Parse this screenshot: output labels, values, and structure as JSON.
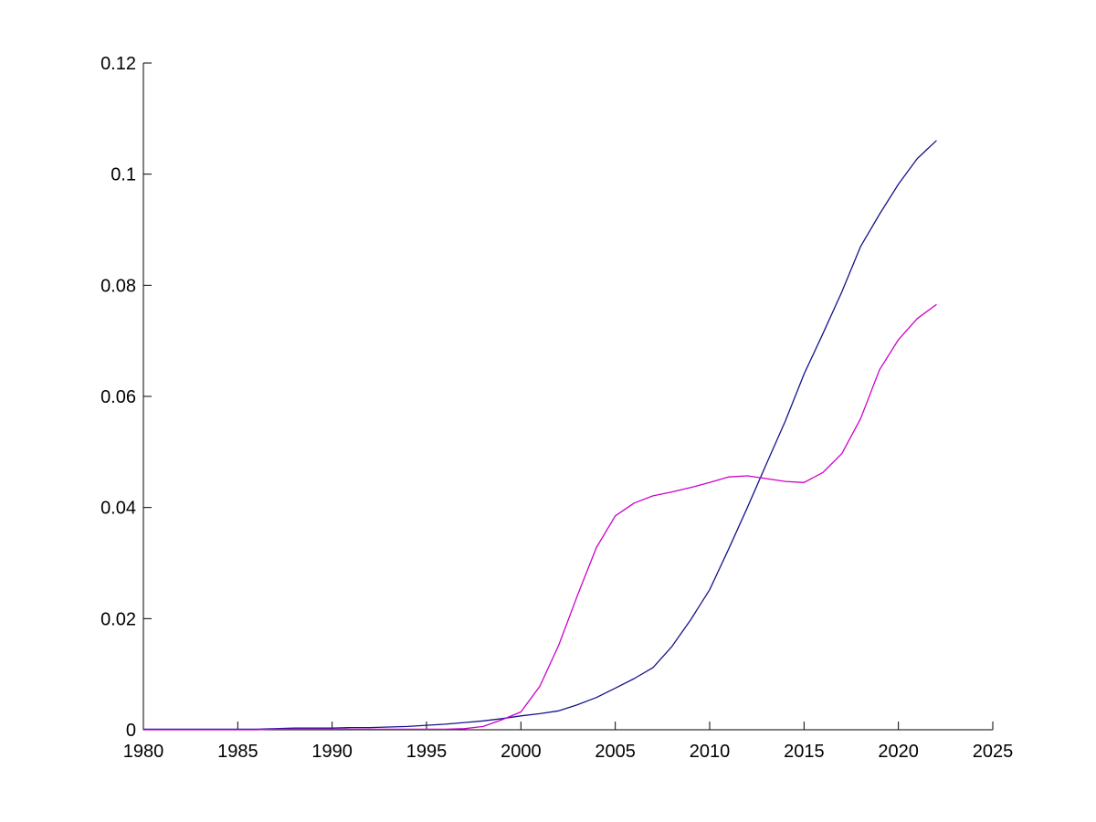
{
  "figure": {
    "background_color": "#ffffff",
    "title": "",
    "legend": null
  },
  "chart_data": {
    "type": "line",
    "title": "",
    "xlabel": "",
    "ylabel": "",
    "grid": false,
    "box": false,
    "legend_position": "none",
    "axis_color": "#000000",
    "xlim": [
      1980,
      2025
    ],
    "ylim": [
      0,
      0.12
    ],
    "xticks": [
      1980,
      1985,
      1990,
      1995,
      2000,
      2005,
      2010,
      2015,
      2020,
      2025
    ],
    "xtick_labels": [
      "1980",
      "1985",
      "1990",
      "1995",
      "2000",
      "2005",
      "2010",
      "2015",
      "2020",
      "2025"
    ],
    "yticks": [
      0,
      0.02,
      0.04,
      0.06,
      0.08,
      0.1,
      0.12
    ],
    "ytick_labels": [
      "0",
      "0.02",
      "0.04",
      "0.06",
      "0.08",
      "0.1",
      "0.12"
    ],
    "x": [
      1980,
      1981,
      1982,
      1983,
      1984,
      1985,
      1986,
      1987,
      1988,
      1989,
      1990,
      1991,
      1992,
      1993,
      1994,
      1995,
      1996,
      1997,
      1998,
      1999,
      2000,
      2001,
      2002,
      2003,
      2004,
      2005,
      2006,
      2007,
      2008,
      2009,
      2010,
      2011,
      2012,
      2013,
      2014,
      2015,
      2016,
      2017,
      2018,
      2019,
      2020,
      2021,
      2022
    ],
    "series": [
      {
        "name": "dark-blue-line",
        "color": "#14148c",
        "values": [
          0.0001,
          0.0001,
          0.0001,
          0.0001,
          0.0001,
          0.0001,
          0.0001,
          0.0002,
          0.0003,
          0.0003,
          0.0003,
          0.0004,
          0.0004,
          0.0005,
          0.0006,
          0.0008,
          0.001,
          0.0013,
          0.0016,
          0.002,
          0.0025,
          0.0029,
          0.0034,
          0.0045,
          0.0058,
          0.0075,
          0.0092,
          0.0112,
          0.015,
          0.0198,
          0.0252,
          0.0325,
          0.04,
          0.0478,
          0.0555,
          0.064,
          0.0713,
          0.0788,
          0.087,
          0.0928,
          0.0982,
          0.1028,
          0.106
        ]
      },
      {
        "name": "magenta-line",
        "color": "#cc00cc",
        "values": [
          0.0,
          0.0,
          0.0,
          0.0,
          0.0,
          0.0,
          0.0,
          0.0001,
          0.0001,
          0.0001,
          0.0001,
          0.0001,
          0.0001,
          0.0001,
          0.0001,
          0.0001,
          0.0001,
          0.0002,
          0.0006,
          0.0018,
          0.0032,
          0.0078,
          0.0152,
          0.0242,
          0.0328,
          0.0385,
          0.0408,
          0.0421,
          0.0428,
          0.0436,
          0.0445,
          0.0455,
          0.0457,
          0.0452,
          0.0447,
          0.0445,
          0.0463,
          0.0497,
          0.056,
          0.0648,
          0.0702,
          0.074,
          0.0765
        ]
      }
    ]
  }
}
